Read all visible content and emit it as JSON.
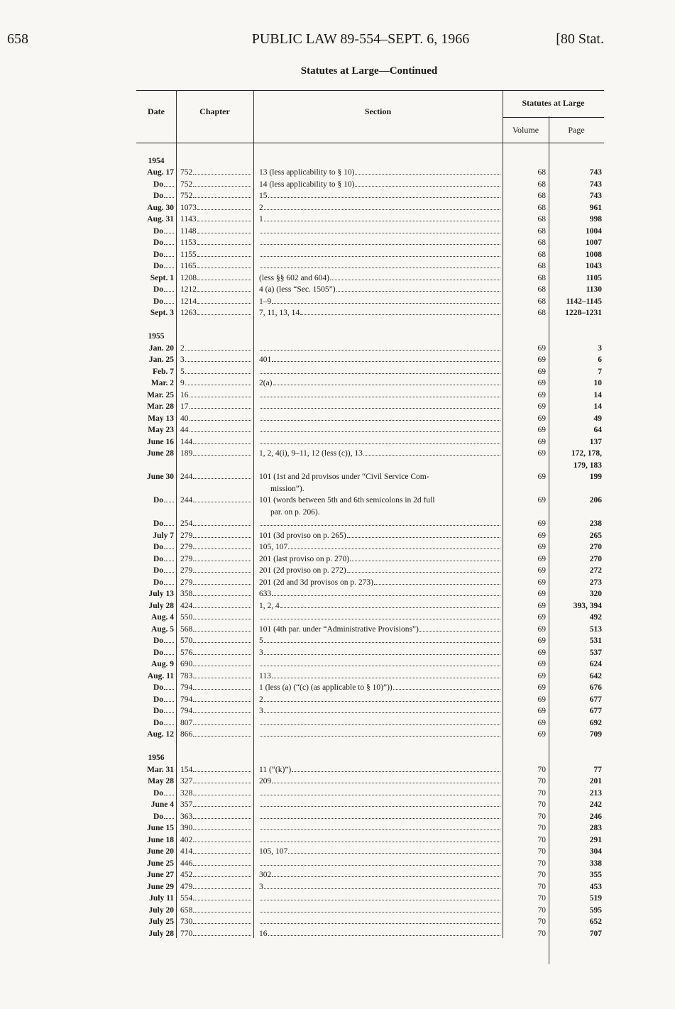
{
  "page_header": {
    "page_number": "658",
    "title": "PUBLIC LAW 89-554–SEPT. 6, 1966",
    "volume_ref": "[80 Stat."
  },
  "subtitle": "Statutes at Large—Continued",
  "columns": {
    "date": "Date",
    "chapter": "Chapter",
    "section": "Section",
    "statutes": "Statutes at Large",
    "volume": "Volume",
    "page": "Page"
  },
  "groups": [
    {
      "year": "1954",
      "rows": [
        {
          "date": "Aug. 17",
          "chapter": "752",
          "section": [
            "13 (less applicability to § 10)"
          ],
          "volume": "68",
          "page": [
            "743"
          ]
        },
        {
          "date": "Do",
          "chapter": "752",
          "section": [
            "14 (less applicability to § 10)"
          ],
          "volume": "68",
          "page": [
            "743"
          ]
        },
        {
          "date": "Do",
          "chapter": "752",
          "section": [
            "15"
          ],
          "volume": "68",
          "page": [
            "743"
          ]
        },
        {
          "date": "Aug. 30",
          "chapter": "1073",
          "section": [
            "2"
          ],
          "volume": "68",
          "page": [
            "961"
          ]
        },
        {
          "date": "Aug. 31",
          "chapter": "1143",
          "section": [
            "1"
          ],
          "volume": "68",
          "page": [
            "998"
          ]
        },
        {
          "date": "Do",
          "chapter": "1148",
          "section": [
            ""
          ],
          "volume": "68",
          "page": [
            "1004"
          ]
        },
        {
          "date": "Do",
          "chapter": "1153",
          "section": [
            ""
          ],
          "volume": "68",
          "page": [
            "1007"
          ]
        },
        {
          "date": "Do",
          "chapter": "1155",
          "section": [
            ""
          ],
          "volume": "68",
          "page": [
            "1008"
          ]
        },
        {
          "date": "Do",
          "chapter": "1165",
          "section": [
            ""
          ],
          "volume": "68",
          "page": [
            "1043"
          ]
        },
        {
          "date": "Sept. 1",
          "chapter": "1208",
          "section": [
            "(less §§ 602 and 604)"
          ],
          "volume": "68",
          "page": [
            "1105"
          ]
        },
        {
          "date": "Do",
          "chapter": "1212",
          "section": [
            "4 (a) (less “Sec. 1505”)"
          ],
          "volume": "68",
          "page": [
            "1130"
          ]
        },
        {
          "date": "Do",
          "chapter": "1214",
          "section": [
            "1–9"
          ],
          "volume": "68",
          "page": [
            "1142–1145"
          ]
        },
        {
          "date": "Sept. 3",
          "chapter": "1263",
          "section": [
            "7, 11, 13, 14"
          ],
          "volume": "68",
          "page": [
            "1228–1231"
          ]
        }
      ]
    },
    {
      "year": "1955",
      "rows": [
        {
          "date": "Jan. 20",
          "chapter": "2",
          "section": [
            ""
          ],
          "volume": "69",
          "page": [
            "3"
          ]
        },
        {
          "date": "Jan. 25",
          "chapter": "3",
          "section": [
            "401"
          ],
          "volume": "69",
          "page": [
            "6"
          ]
        },
        {
          "date": "Feb. 7",
          "chapter": "5",
          "section": [
            ""
          ],
          "volume": "69",
          "page": [
            "7"
          ]
        },
        {
          "date": "Mar. 2",
          "chapter": "9",
          "section": [
            "2(a)"
          ],
          "volume": "69",
          "page": [
            "10"
          ]
        },
        {
          "date": "Mar. 25",
          "chapter": "16",
          "section": [
            ""
          ],
          "volume": "69",
          "page": [
            "14"
          ]
        },
        {
          "date": "Mar. 28",
          "chapter": "17",
          "section": [
            ""
          ],
          "volume": "69",
          "page": [
            "14"
          ]
        },
        {
          "date": "May 13",
          "chapter": "40",
          "section": [
            ""
          ],
          "volume": "69",
          "page": [
            "49"
          ]
        },
        {
          "date": "May 23",
          "chapter": "44",
          "section": [
            ""
          ],
          "volume": "69",
          "page": [
            "64"
          ]
        },
        {
          "date": "June 16",
          "chapter": "144",
          "section": [
            ""
          ],
          "volume": "69",
          "page": [
            "137"
          ]
        },
        {
          "date": "June 28",
          "chapter": "189",
          "section": [
            "1, 2, 4(i), 9–11, 12 (less (c)), 13"
          ],
          "volume": "69",
          "page": [
            "172, 178,",
            "179, 183"
          ]
        },
        {
          "date": "June 30",
          "chapter": "244",
          "section": [
            "101 (1st and 2d provisos under “Civil Service Com-",
            "mission”)."
          ],
          "volume": "69",
          "page": [
            "199"
          ]
        },
        {
          "date": "Do",
          "chapter": "244",
          "section": [
            "101 (words between 5th and 6th semicolons in 2d full",
            "par. on p. 206)."
          ],
          "volume": "69",
          "page": [
            "206"
          ]
        },
        {
          "date": "Do",
          "chapter": "254",
          "section": [
            ""
          ],
          "volume": "69",
          "page": [
            "238"
          ]
        },
        {
          "date": "July 7",
          "chapter": "279",
          "section": [
            "101 (3d proviso on p. 265)"
          ],
          "volume": "69",
          "page": [
            "265"
          ]
        },
        {
          "date": "Do",
          "chapter": "279",
          "section": [
            "105, 107"
          ],
          "volume": "69",
          "page": [
            "270"
          ]
        },
        {
          "date": "Do",
          "chapter": "279",
          "section": [
            "201 (last proviso on p. 270)"
          ],
          "volume": "69",
          "page": [
            "270"
          ]
        },
        {
          "date": "Do",
          "chapter": "279",
          "section": [
            "201 (2d proviso on p. 272)"
          ],
          "volume": "69",
          "page": [
            "272"
          ]
        },
        {
          "date": "Do",
          "chapter": "279",
          "section": [
            "201 (2d and 3d provisos on p. 273)"
          ],
          "volume": "69",
          "page": [
            "273"
          ]
        },
        {
          "date": "July 13",
          "chapter": "358",
          "section": [
            "633"
          ],
          "volume": "69",
          "page": [
            "320"
          ]
        },
        {
          "date": "July 28",
          "chapter": "424",
          "section": [
            "1, 2, 4"
          ],
          "volume": "69",
          "page": [
            "393, 394"
          ]
        },
        {
          "date": "Aug. 4",
          "chapter": "550",
          "section": [
            ""
          ],
          "volume": "69",
          "page": [
            "492"
          ]
        },
        {
          "date": "Aug. 5",
          "chapter": "568",
          "section": [
            "101 (4th par. under “Administrative Provisions”)"
          ],
          "volume": "69",
          "page": [
            "513"
          ]
        },
        {
          "date": "Do",
          "chapter": "570",
          "section": [
            "5"
          ],
          "volume": "69",
          "page": [
            "531"
          ]
        },
        {
          "date": "Do",
          "chapter": "576",
          "section": [
            "3"
          ],
          "volume": "69",
          "page": [
            "537"
          ]
        },
        {
          "date": "Aug. 9",
          "chapter": "690",
          "section": [
            ""
          ],
          "volume": "69",
          "page": [
            "624"
          ]
        },
        {
          "date": "Aug. 11",
          "chapter": "783",
          "section": [
            "113"
          ],
          "volume": "69",
          "page": [
            "642"
          ]
        },
        {
          "date": "Do",
          "chapter": "794",
          "section": [
            "1 (less (a) (“(c) (as applicable to § 10)”))"
          ],
          "volume": "69",
          "page": [
            "676"
          ]
        },
        {
          "date": "Do",
          "chapter": "794",
          "section": [
            "2"
          ],
          "volume": "69",
          "page": [
            "677"
          ]
        },
        {
          "date": "Do",
          "chapter": "794",
          "section": [
            "3"
          ],
          "volume": "69",
          "page": [
            "677"
          ]
        },
        {
          "date": "Do",
          "chapter": "807",
          "section": [
            ""
          ],
          "volume": "69",
          "page": [
            "692"
          ]
        },
        {
          "date": "Aug. 12",
          "chapter": "866",
          "section": [
            ""
          ],
          "volume": "69",
          "page": [
            "709"
          ]
        }
      ]
    },
    {
      "year": "1956",
      "rows": [
        {
          "date": "Mar. 31",
          "chapter": "154",
          "section": [
            "11 (“(k)”)"
          ],
          "volume": "70",
          "page": [
            "77"
          ]
        },
        {
          "date": "May 28",
          "chapter": "327",
          "section": [
            "209"
          ],
          "volume": "70",
          "page": [
            "201"
          ]
        },
        {
          "date": "Do",
          "chapter": "328",
          "section": [
            ""
          ],
          "volume": "70",
          "page": [
            "213"
          ]
        },
        {
          "date": "June 4",
          "chapter": "357",
          "section": [
            ""
          ],
          "volume": "70",
          "page": [
            "242"
          ]
        },
        {
          "date": "Do",
          "chapter": "363",
          "section": [
            ""
          ],
          "volume": "70",
          "page": [
            "246"
          ]
        },
        {
          "date": "June 15",
          "chapter": "390",
          "section": [
            ""
          ],
          "volume": "70",
          "page": [
            "283"
          ]
        },
        {
          "date": "June 18",
          "chapter": "402",
          "section": [
            ""
          ],
          "volume": "70",
          "page": [
            "291"
          ]
        },
        {
          "date": "June 20",
          "chapter": "414",
          "section": [
            "105, 107"
          ],
          "volume": "70",
          "page": [
            "304"
          ]
        },
        {
          "date": "June 25",
          "chapter": "446",
          "section": [
            ""
          ],
          "volume": "70",
          "page": [
            "338"
          ]
        },
        {
          "date": "June 27",
          "chapter": "452",
          "section": [
            "302"
          ],
          "volume": "70",
          "page": [
            "355"
          ]
        },
        {
          "date": "June 29",
          "chapter": "479",
          "section": [
            "3"
          ],
          "volume": "70",
          "page": [
            "453"
          ]
        },
        {
          "date": "July 11",
          "chapter": "554",
          "section": [
            ""
          ],
          "volume": "70",
          "page": [
            "519"
          ]
        },
        {
          "date": "July 20",
          "chapter": "658",
          "section": [
            ""
          ],
          "volume": "70",
          "page": [
            "595"
          ]
        },
        {
          "date": "July 25",
          "chapter": "730",
          "section": [
            ""
          ],
          "volume": "70",
          "page": [
            "652"
          ]
        },
        {
          "date": "July 28",
          "chapter": "770",
          "section": [
            "16"
          ],
          "volume": "70",
          "page": [
            "707"
          ]
        }
      ]
    }
  ]
}
